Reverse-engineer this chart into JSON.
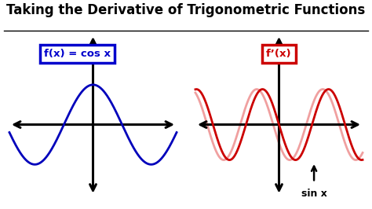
{
  "title": "Taking the Derivative of Trigonometric Functions",
  "title_fontsize": 12,
  "title_fontweight": "bold",
  "background_color": "#ffffff",
  "left_label": "f(x) = cos x",
  "right_label": "f’(x)",
  "annotation": "sin x",
  "left_box_color": "#0000cc",
  "right_box_color": "#cc0000",
  "left_curve_color": "#0000bb",
  "right_curve_solid_color": "#cc0000",
  "right_curve_fade_color": "#f0a0a0",
  "axis_color": "#000000",
  "cos_amplitude": 0.62,
  "cos_freq_factor": 1.05,
  "sin_amplitude": 0.55,
  "sin_freq_factor": 1.85,
  "sin_phase_shift": 0.55
}
